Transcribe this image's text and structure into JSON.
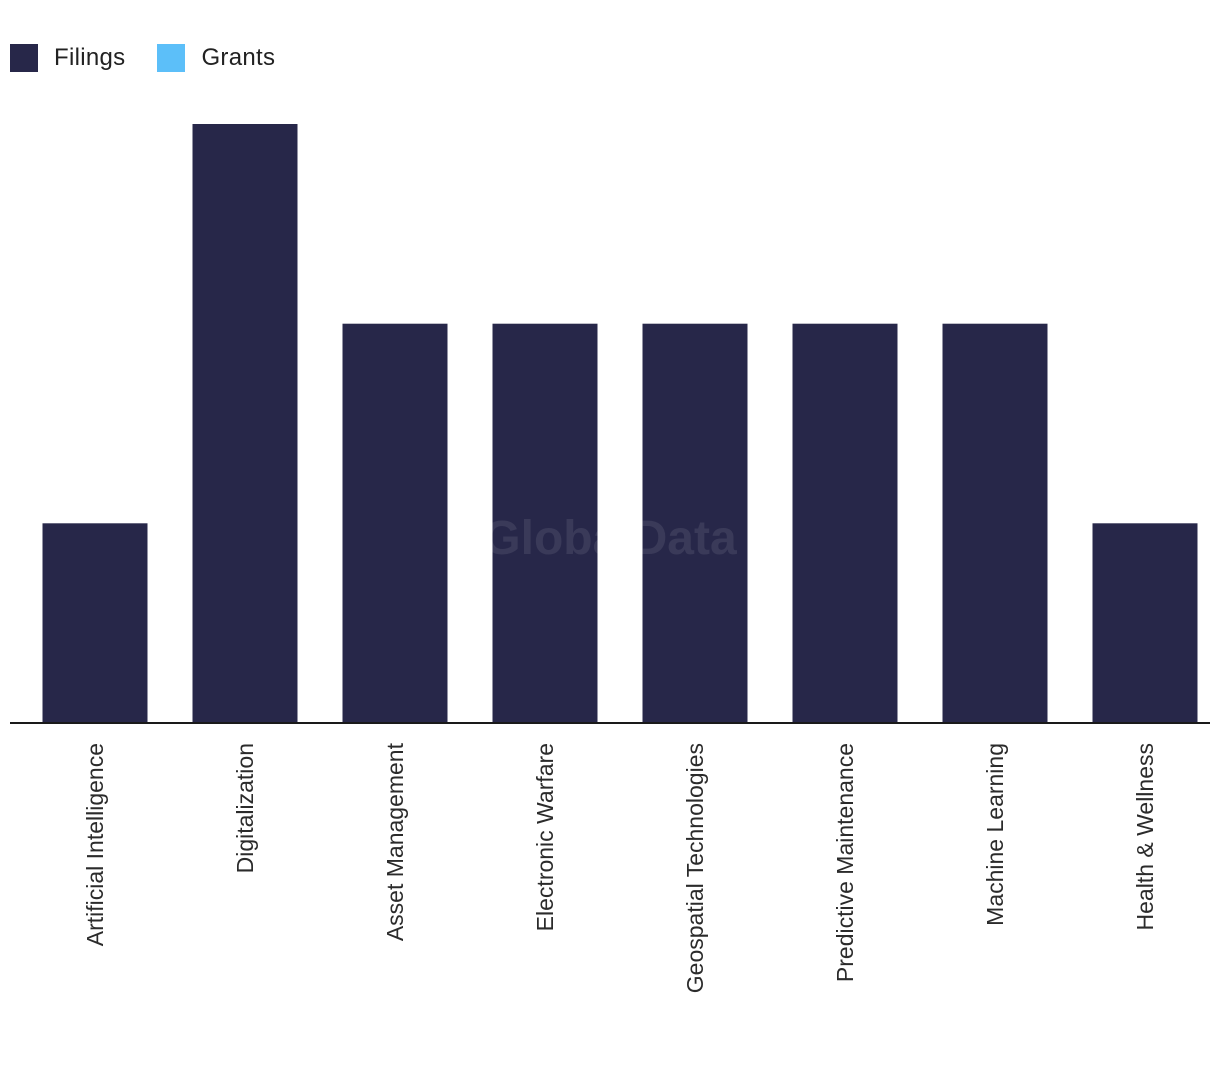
{
  "legend": {
    "items": [
      {
        "label": "Filings",
        "color": "#272749"
      },
      {
        "label": "Grants",
        "color": "#5cbff9"
      }
    ]
  },
  "watermark": "GlobalData",
  "chart_data": {
    "type": "bar",
    "categories": [
      "Artificial Intelligence",
      "Digitalization",
      "Asset Management",
      "Electronic Warfare",
      "Geospatial Technologies",
      "Predictive Maintenance",
      "Machine Learning",
      "Health & Wellness"
    ],
    "series": [
      {
        "name": "Filings",
        "color": "#272749",
        "values": [
          1,
          3,
          2,
          2,
          2,
          2,
          2,
          1
        ]
      },
      {
        "name": "Grants",
        "color": "#5cbff9",
        "values": [
          0,
          0,
          0,
          0,
          0,
          0,
          0,
          0
        ]
      }
    ],
    "ylim": [
      0,
      3
    ],
    "grid": false,
    "legend_position": "top-left",
    "title": "",
    "xlabel": "",
    "ylabel": ""
  }
}
